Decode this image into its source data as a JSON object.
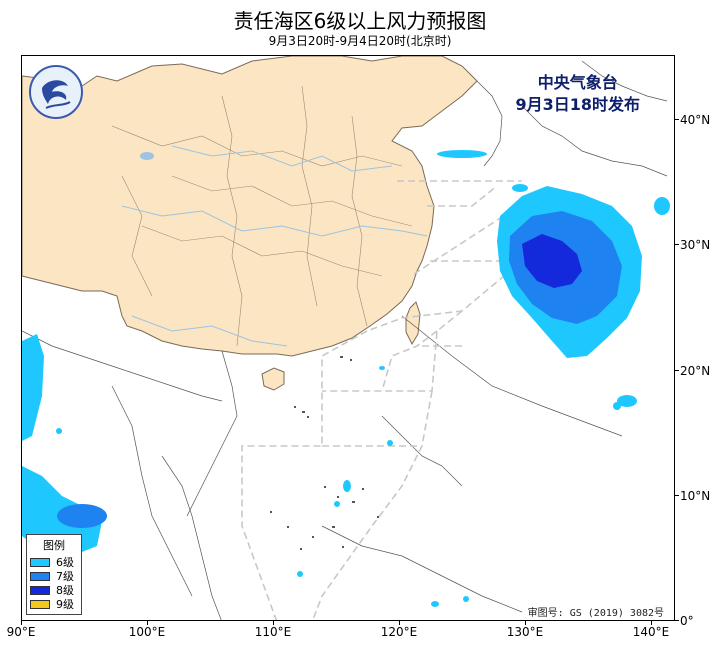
{
  "header": {
    "title": "责任海区6级以上风力预报图",
    "subtitle": "9月3日20时-9月4日20时(北京时)"
  },
  "agency": {
    "line1": "中央气象台",
    "line2": "9月3日18时发布"
  },
  "legend": {
    "title": "图例",
    "items": [
      {
        "label": "6级",
        "color": "#1ec8ff"
      },
      {
        "label": "7级",
        "color": "#1e82f0"
      },
      {
        "label": "8级",
        "color": "#1428dc"
      },
      {
        "label": "9级",
        "color": "#f0c81e"
      }
    ]
  },
  "approval": "审图号: GS (2019) 3082号",
  "axes": {
    "x_ticks": [
      "90°E",
      "100°E",
      "110°E",
      "120°E",
      "130°E",
      "140°E"
    ],
    "y_ticks": [
      "40°N",
      "30°N",
      "20°N",
      "10°N",
      "0°"
    ]
  },
  "colors": {
    "land_china": "#fbe5c2",
    "ocean": "#ffffff",
    "boundary": "#7a6a58",
    "river": "#9dc4e0",
    "zone_line": "#c8c8c8"
  }
}
